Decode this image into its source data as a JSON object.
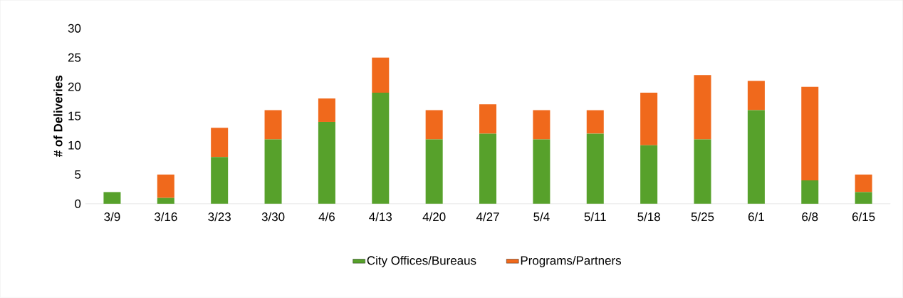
{
  "chart_data": {
    "type": "bar",
    "stacked": true,
    "ylabel": "# of Deliveries",
    "categories": [
      "3/9",
      "3/16",
      "3/23",
      "3/30",
      "4/6",
      "4/13",
      "4/20",
      "4/27",
      "5/4",
      "5/11",
      "5/18",
      "5/25",
      "6/1",
      "6/8",
      "6/15"
    ],
    "series": [
      {
        "name": "City Offices/Bureaus",
        "color": "#57a12b",
        "values": [
          2,
          1,
          8,
          11,
          14,
          19,
          11,
          12,
          11,
          12,
          10,
          11,
          16,
          4,
          2
        ]
      },
      {
        "name": "Programs/Partners",
        "color": "#f0691c",
        "values": [
          0,
          4,
          5,
          5,
          4,
          6,
          5,
          5,
          5,
          4,
          9,
          11,
          5,
          16,
          3
        ]
      }
    ],
    "ylim": [
      0,
      30
    ],
    "yticks": [
      0,
      5,
      10,
      15,
      20,
      25,
      30
    ],
    "legend": "bottom"
  }
}
